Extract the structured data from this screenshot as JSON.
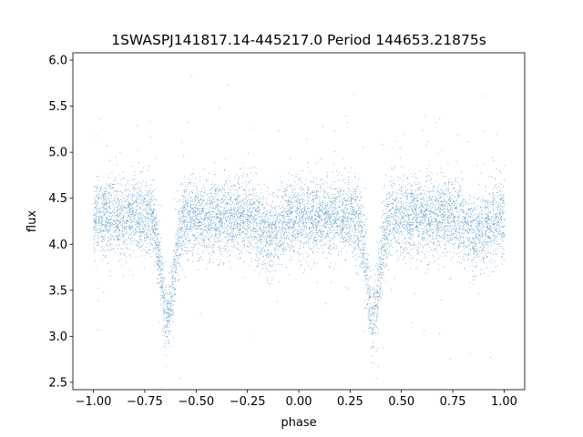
{
  "chart_data": {
    "type": "scatter",
    "title": "1SWASPJ141817.14-445217.0 Period 144653.21875s",
    "xlabel": "phase",
    "ylabel": "flux",
    "xlim": [
      -1.1,
      1.1
    ],
    "ylim": [
      2.42,
      6.08
    ],
    "x_ticks": [
      -1.0,
      -0.75,
      -0.5,
      -0.25,
      0.0,
      0.25,
      0.5,
      0.75,
      1.0
    ],
    "x_tick_labels": [
      "−1.00",
      "−0.75",
      "−0.50",
      "−0.25",
      "0.00",
      "0.25",
      "0.50",
      "0.75",
      "1.00"
    ],
    "y_ticks": [
      2.5,
      3.0,
      3.5,
      4.0,
      4.5,
      5.0,
      5.5,
      6.0
    ],
    "y_tick_labels": [
      "2.5",
      "3.0",
      "3.5",
      "4.0",
      "4.5",
      "5.0",
      "5.5",
      "6.0"
    ],
    "grid": false,
    "legend": "none",
    "point_color": "#1f77b4",
    "series_shape": {
      "phase_range": [
        -1.0,
        1.0
      ],
      "baseline_flux": 4.3,
      "scatter_sd": 0.2,
      "primary_eclipse": {
        "phase": -0.64,
        "depth": 1.1,
        "width": 0.03
      },
      "primary_eclipse_repeat": {
        "phase": 0.36,
        "depth": 1.1,
        "width": 0.03
      },
      "secondary_eclipse": {
        "phase": -0.14,
        "depth": 0.2,
        "width": 0.045
      },
      "secondary_eclipse_repeat": {
        "phase": 0.86,
        "depth": 0.2,
        "width": 0.045
      }
    }
  }
}
